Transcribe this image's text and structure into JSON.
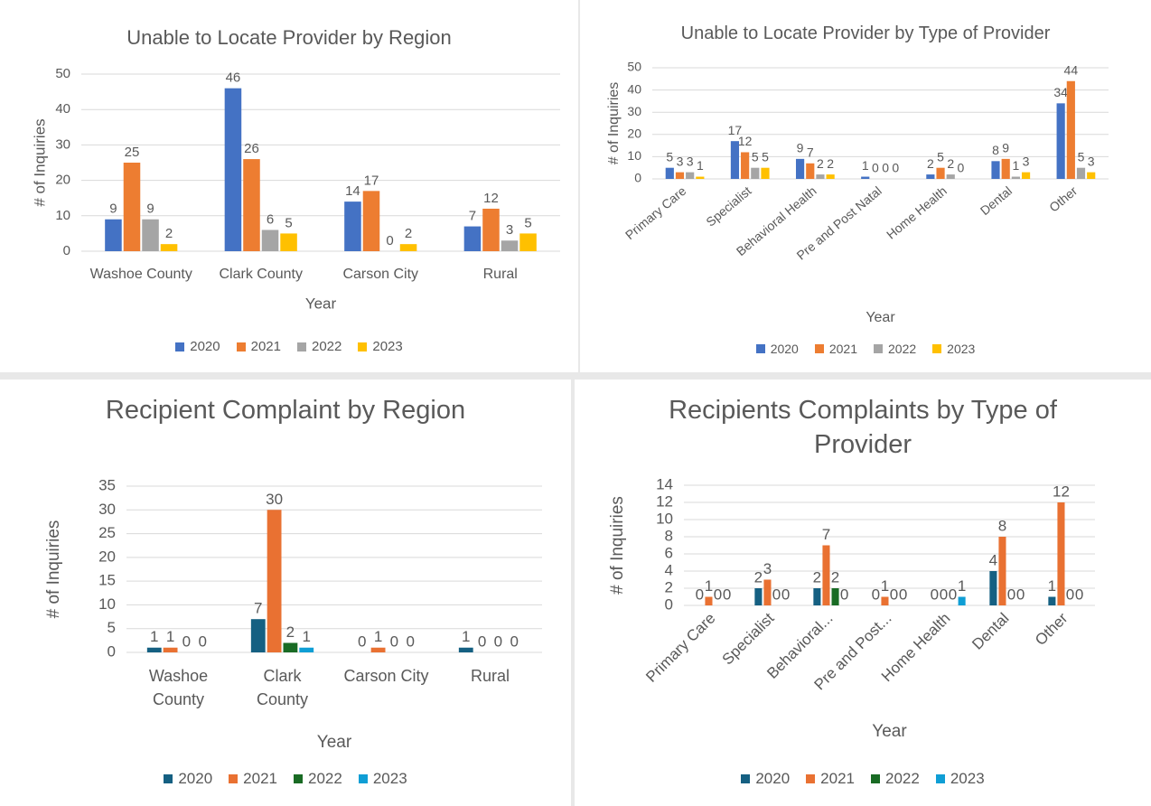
{
  "chart_data": [
    {
      "type": "bar",
      "title": "Unable to Locate Provider by Region",
      "x_label": "Year",
      "y_label": "# of Inquiries",
      "categories": [
        "Washoe County",
        "Clark County",
        "Carson City",
        "Rural"
      ],
      "series": [
        {
          "name": "2020",
          "color": "#4472c4",
          "values": [
            9,
            46,
            14,
            7
          ]
        },
        {
          "name": "2021",
          "color": "#ed7d31",
          "values": [
            25,
            26,
            17,
            12
          ]
        },
        {
          "name": "2022",
          "color": "#a5a5a5",
          "values": [
            9,
            6,
            0,
            3
          ]
        },
        {
          "name": "2023",
          "color": "#ffc000",
          "values": [
            2,
            5,
            2,
            5
          ]
        }
      ],
      "ylim": [
        0,
        50
      ],
      "yticks": [
        0,
        10,
        20,
        30,
        40,
        50
      ],
      "grid": true,
      "legend": "bottom"
    },
    {
      "type": "bar",
      "title": "Unable to Locate Provider by Type of Provider",
      "x_label": "Year",
      "y_label": "# of Inquiries",
      "categories": [
        "Primary Care",
        "Specialist",
        "Behavioral Health",
        "Pre and Post Natal",
        "Home Health",
        "Dental",
        "Other"
      ],
      "series": [
        {
          "name": "2020",
          "color": "#4472c4",
          "values": [
            5,
            17,
            9,
            1,
            2,
            8,
            34
          ]
        },
        {
          "name": "2021",
          "color": "#ed7d31",
          "values": [
            3,
            12,
            7,
            0,
            5,
            9,
            44
          ]
        },
        {
          "name": "2022",
          "color": "#a5a5a5",
          "values": [
            3,
            5,
            2,
            0,
            2,
            1,
            5
          ]
        },
        {
          "name": "2023",
          "color": "#ffc000",
          "values": [
            1,
            5,
            2,
            0,
            0,
            3,
            3
          ]
        }
      ],
      "ylim": [
        0,
        50
      ],
      "yticks": [
        0,
        10,
        20,
        30,
        40,
        50
      ],
      "grid": true,
      "legend": "bottom"
    },
    {
      "type": "bar",
      "title": "Recipient Complaint by Region",
      "x_label": "Year",
      "y_label": "# of Inquiries",
      "categories": [
        "Washoe County",
        "Clark County",
        "Carson City",
        "Rural"
      ],
      "series": [
        {
          "name": "2020",
          "color": "#156082",
          "values": [
            1,
            7,
            0,
            1
          ]
        },
        {
          "name": "2021",
          "color": "#e97132",
          "values": [
            1,
            30,
            1,
            0
          ]
        },
        {
          "name": "2022",
          "color": "#196b24",
          "values": [
            0,
            2,
            0,
            0
          ]
        },
        {
          "name": "2023",
          "color": "#0f9ed5",
          "values": [
            0,
            1,
            0,
            0
          ]
        }
      ],
      "ylim": [
        0,
        35
      ],
      "yticks": [
        0,
        5,
        10,
        15,
        20,
        25,
        30,
        35
      ],
      "grid": true,
      "legend": "bottom"
    },
    {
      "type": "bar",
      "title": "Recipients Complaints by Type of Provider",
      "x_label": "Year",
      "y_label": "# of Inquiries",
      "categories": [
        "Primary Care",
        "Specialist",
        "Behavioral...",
        "Pre and Post...",
        "Home Health",
        "Dental",
        "Other"
      ],
      "series": [
        {
          "name": "2020",
          "color": "#156082",
          "values": [
            0,
            2,
            2,
            0,
            0,
            4,
            1
          ]
        },
        {
          "name": "2021",
          "color": "#e97132",
          "values": [
            1,
            3,
            7,
            1,
            0,
            8,
            12
          ]
        },
        {
          "name": "2022",
          "color": "#196b24",
          "values": [
            0,
            0,
            2,
            0,
            0,
            0,
            0
          ]
        },
        {
          "name": "2023",
          "color": "#0f9ed5",
          "values": [
            0,
            0,
            0,
            0,
            1,
            0,
            0
          ]
        }
      ],
      "ylim": [
        0,
        14
      ],
      "yticks": [
        0,
        2,
        4,
        6,
        8,
        10,
        12,
        14
      ],
      "grid": true,
      "legend": "bottom"
    }
  ]
}
